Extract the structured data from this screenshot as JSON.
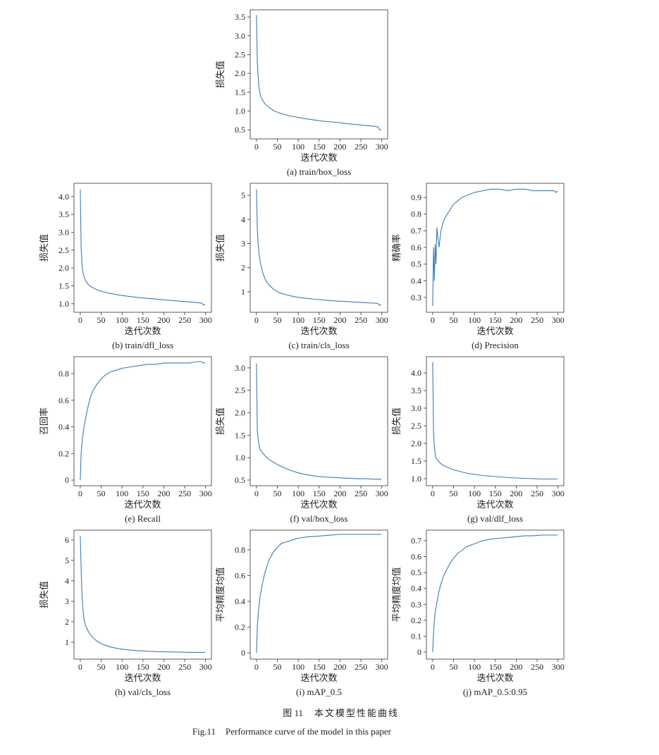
{
  "figure": {
    "label_cn": "图 11",
    "title_cn": "本文模型性能曲线",
    "label_en": "Fig.11",
    "title_en": "Performance curve of the model in this paper"
  },
  "chart_data": [
    {
      "type": "line",
      "caption": "(a) train/box_loss",
      "xlabel": "迭代次数",
      "ylabel": "损失值",
      "color": "#3f7ab3",
      "x": [
        0,
        2,
        4,
        6,
        8,
        10,
        15,
        20,
        25,
        30,
        40,
        50,
        60,
        70,
        80,
        90,
        100,
        120,
        140,
        160,
        180,
        200,
        220,
        240,
        260,
        280,
        290,
        295,
        299
      ],
      "values": [
        3.55,
        2.3,
        1.9,
        1.65,
        1.5,
        1.4,
        1.28,
        1.2,
        1.14,
        1.1,
        1.02,
        0.97,
        0.93,
        0.9,
        0.87,
        0.85,
        0.83,
        0.79,
        0.76,
        0.73,
        0.71,
        0.69,
        0.66,
        0.64,
        0.62,
        0.6,
        0.58,
        0.5,
        0.5
      ],
      "xlim": [
        -15,
        314
      ],
      "ylim": [
        0.26,
        3.69
      ],
      "xticks": [
        0,
        50,
        100,
        150,
        200,
        250,
        300
      ],
      "yticks": [
        0.5,
        {
          "value": 1,
          "label": "1.0"
        },
        1.5,
        {
          "value": 2,
          "label": "2.0"
        },
        2.5,
        {
          "value": 3,
          "label": "3.0"
        },
        3.5
      ]
    },
    {
      "type": "line",
      "caption": "(b) train/dfl_loss",
      "xlabel": "迭代次数",
      "ylabel": "损失值",
      "color": "#3f7ab3",
      "x": [
        0,
        2,
        4,
        6,
        8,
        10,
        15,
        20,
        25,
        30,
        40,
        50,
        60,
        70,
        80,
        90,
        100,
        120,
        140,
        160,
        180,
        200,
        220,
        240,
        260,
        280,
        290,
        295,
        299
      ],
      "values": [
        4.2,
        2.6,
        2.1,
        1.9,
        1.8,
        1.72,
        1.6,
        1.53,
        1.48,
        1.45,
        1.39,
        1.35,
        1.32,
        1.29,
        1.27,
        1.25,
        1.23,
        1.2,
        1.17,
        1.15,
        1.13,
        1.11,
        1.09,
        1.07,
        1.05,
        1.03,
        1.02,
        0.97,
        0.97
      ],
      "xlim": [
        -15,
        314
      ],
      "ylim": [
        0.76,
        4.37
      ],
      "xticks": [
        0,
        50,
        100,
        150,
        200,
        250,
        300
      ],
      "yticks": [
        {
          "value": 1,
          "label": "1.0"
        },
        1.5,
        {
          "value": 2,
          "label": "2.0"
        },
        2.5,
        {
          "value": 3,
          "label": "3.0"
        },
        3.5,
        {
          "value": 4,
          "label": "4.0"
        }
      ]
    },
    {
      "type": "line",
      "caption": "(c) train/cls_loss",
      "xlabel": "迭代次数",
      "ylabel": "损失值",
      "color": "#3f7ab3",
      "x": [
        0,
        2,
        4,
        6,
        8,
        10,
        15,
        20,
        25,
        30,
        40,
        50,
        60,
        70,
        80,
        90,
        100,
        120,
        140,
        160,
        180,
        200,
        220,
        240,
        260,
        280,
        290,
        295,
        299
      ],
      "values": [
        5.25,
        3.6,
        3.0,
        2.6,
        2.35,
        2.15,
        1.8,
        1.55,
        1.4,
        1.28,
        1.12,
        1.0,
        0.93,
        0.88,
        0.84,
        0.8,
        0.77,
        0.73,
        0.69,
        0.66,
        0.63,
        0.61,
        0.59,
        0.57,
        0.55,
        0.53,
        0.52,
        0.45,
        0.45
      ],
      "xlim": [
        -15,
        314
      ],
      "ylim": [
        0.15,
        5.5
      ],
      "xticks": [
        0,
        50,
        100,
        150,
        200,
        250,
        300
      ],
      "yticks": [
        1,
        2,
        3,
        4,
        5
      ]
    },
    {
      "type": "line",
      "caption": "(d) Precision",
      "xlabel": "迭代次数",
      "ylabel": "精确率",
      "color": "#3f7ab3",
      "x": [
        0,
        2,
        4,
        6,
        8,
        10,
        15,
        20,
        25,
        30,
        40,
        50,
        60,
        70,
        80,
        90,
        100,
        120,
        140,
        160,
        180,
        200,
        220,
        240,
        260,
        280,
        290,
        295,
        299
      ],
      "values": [
        0.25,
        0.6,
        0.4,
        0.62,
        0.5,
        0.72,
        0.6,
        0.7,
        0.75,
        0.78,
        0.82,
        0.86,
        0.88,
        0.9,
        0.91,
        0.92,
        0.93,
        0.94,
        0.95,
        0.95,
        0.94,
        0.95,
        0.95,
        0.94,
        0.94,
        0.94,
        0.94,
        0.93,
        0.94
      ],
      "xlim": [
        -15,
        314
      ],
      "ylim": [
        0.211,
        0.985
      ],
      "xticks": [
        0,
        50,
        100,
        150,
        200,
        250,
        300
      ],
      "yticks": [
        0.3,
        0.4,
        0.5,
        0.6,
        0.7,
        0.8,
        0.9
      ]
    },
    {
      "type": "line",
      "caption": "(e) Recall",
      "xlabel": "迭代次数",
      "ylabel": "召回率",
      "color": "#3f7ab3",
      "x": [
        0,
        2,
        4,
        6,
        8,
        10,
        15,
        20,
        25,
        30,
        40,
        50,
        60,
        70,
        80,
        90,
        100,
        120,
        140,
        160,
        180,
        200,
        220,
        240,
        260,
        280,
        290,
        295,
        299
      ],
      "values": [
        0,
        0.2,
        0.27,
        0.33,
        0.38,
        0.42,
        0.5,
        0.57,
        0.63,
        0.67,
        0.72,
        0.76,
        0.79,
        0.81,
        0.82,
        0.83,
        0.84,
        0.85,
        0.86,
        0.87,
        0.87,
        0.88,
        0.88,
        0.88,
        0.88,
        0.89,
        0.89,
        0.88,
        0.88
      ],
      "xlim": [
        -15,
        314
      ],
      "ylim": [
        -0.042,
        0.927
      ],
      "xticks": [
        0,
        50,
        100,
        150,
        200,
        250,
        300
      ],
      "yticks": [
        0,
        0.2,
        0.4,
        0.6,
        0.8
      ]
    },
    {
      "type": "line",
      "caption": "(f) val/box_loss",
      "xlabel": "迭代次数",
      "ylabel": "损失值",
      "color": "#3f7ab3",
      "x": [
        0,
        2,
        4,
        6,
        8,
        10,
        15,
        20,
        25,
        30,
        40,
        50,
        60,
        70,
        80,
        90,
        100,
        120,
        140,
        160,
        180,
        200,
        220,
        240,
        260,
        280,
        290,
        295,
        299
      ],
      "values": [
        3.1,
        1.6,
        1.4,
        1.3,
        1.2,
        1.17,
        1.1,
        1.05,
        1.0,
        0.96,
        0.9,
        0.85,
        0.8,
        0.76,
        0.72,
        0.69,
        0.66,
        0.62,
        0.59,
        0.57,
        0.56,
        0.55,
        0.54,
        0.53,
        0.53,
        0.52,
        0.52,
        0.52,
        0.52
      ],
      "xlim": [
        -15,
        314
      ],
      "ylim": [
        0.374,
        3.25
      ],
      "xticks": [
        0,
        50,
        100,
        150,
        200,
        250,
        300
      ],
      "yticks": [
        0.5,
        {
          "value": 1,
          "label": "1.0"
        },
        1.5,
        {
          "value": 2,
          "label": "2.0"
        },
        2.5,
        {
          "value": 3,
          "label": "3.0"
        }
      ]
    },
    {
      "type": "line",
      "caption": "(g) val/dlf_loss",
      "xlabel": "迭代次数",
      "ylabel": "损失值",
      "color": "#3f7ab3",
      "x": [
        0,
        2,
        4,
        6,
        8,
        10,
        15,
        20,
        25,
        30,
        40,
        50,
        60,
        70,
        80,
        90,
        100,
        120,
        140,
        160,
        180,
        200,
        220,
        240,
        260,
        280,
        290,
        295,
        299
      ],
      "values": [
        4.3,
        2.3,
        1.9,
        1.7,
        1.6,
        1.55,
        1.48,
        1.42,
        1.38,
        1.35,
        1.3,
        1.25,
        1.22,
        1.19,
        1.16,
        1.14,
        1.12,
        1.09,
        1.07,
        1.05,
        1.03,
        1.02,
        1.01,
        1.0,
        0.99,
        0.99,
        0.99,
        0.99,
        0.99
      ],
      "xlim": [
        -15,
        314
      ],
      "ylim": [
        0.8,
        4.46
      ],
      "xticks": [
        0,
        50,
        100,
        150,
        200,
        250,
        300
      ],
      "yticks": [
        {
          "value": 1,
          "label": "1.0"
        },
        1.5,
        {
          "value": 2,
          "label": "2.0"
        },
        2.5,
        {
          "value": 3,
          "label": "3.0"
        },
        3.5,
        {
          "value": 4,
          "label": "4.0"
        }
      ]
    },
    {
      "type": "line",
      "caption": "(h) val/cls_loss",
      "xlabel": "迭代次数",
      "ylabel": "损失值",
      "color": "#3f7ab3",
      "x": [
        0,
        2,
        4,
        6,
        8,
        10,
        15,
        20,
        25,
        30,
        40,
        50,
        60,
        70,
        80,
        90,
        100,
        120,
        140,
        160,
        180,
        200,
        220,
        240,
        260,
        280,
        290,
        295,
        299
      ],
      "values": [
        6.2,
        4.6,
        3.3,
        2.7,
        2.3,
        2.0,
        1.7,
        1.5,
        1.35,
        1.22,
        1.05,
        0.93,
        0.85,
        0.78,
        0.73,
        0.69,
        0.66,
        0.61,
        0.58,
        0.56,
        0.54,
        0.53,
        0.52,
        0.51,
        0.5,
        0.5,
        0.5,
        0.5,
        0.5
      ],
      "xlim": [
        -15,
        314
      ],
      "ylim": [
        0.17,
        6.48
      ],
      "xticks": [
        0,
        50,
        100,
        150,
        200,
        250,
        300
      ],
      "yticks": [
        1,
        2,
        3,
        4,
        5,
        6
      ]
    },
    {
      "type": "line",
      "caption": "(i) mAP_0.5",
      "xlabel": "迭代次数",
      "ylabel": "平均精度均值",
      "color": "#3f7ab3",
      "x": [
        0,
        2,
        4,
        6,
        8,
        10,
        15,
        20,
        25,
        30,
        40,
        50,
        60,
        70,
        80,
        90,
        100,
        120,
        140,
        160,
        180,
        200,
        220,
        240,
        260,
        280,
        290,
        295,
        299
      ],
      "values": [
        0,
        0.2,
        0.3,
        0.36,
        0.42,
        0.46,
        0.55,
        0.62,
        0.67,
        0.72,
        0.78,
        0.82,
        0.85,
        0.86,
        0.87,
        0.88,
        0.89,
        0.9,
        0.905,
        0.91,
        0.915,
        0.92,
        0.92,
        0.92,
        0.92,
        0.92,
        0.92,
        0.92,
        0.92
      ],
      "xlim": [
        -15,
        314
      ],
      "ylim": [
        -0.049,
        0.953
      ],
      "xticks": [
        0,
        50,
        100,
        150,
        200,
        250,
        300
      ],
      "yticks": [
        0,
        0.2,
        0.4,
        0.6,
        0.8
      ]
    },
    {
      "type": "line",
      "caption": "(j) mAP_0.5:0.95",
      "xlabel": "迭代次数",
      "ylabel": "平均精度均值",
      "color": "#3f7ab3",
      "x": [
        0,
        2,
        4,
        6,
        8,
        10,
        15,
        20,
        25,
        30,
        40,
        50,
        60,
        70,
        80,
        90,
        100,
        120,
        140,
        160,
        180,
        200,
        220,
        240,
        260,
        280,
        290,
        295,
        299
      ],
      "values": [
        0,
        0.12,
        0.2,
        0.25,
        0.28,
        0.31,
        0.38,
        0.43,
        0.47,
        0.5,
        0.55,
        0.59,
        0.62,
        0.64,
        0.66,
        0.67,
        0.68,
        0.7,
        0.71,
        0.715,
        0.72,
        0.725,
        0.73,
        0.73,
        0.735,
        0.735,
        0.735,
        0.735,
        0.735
      ],
      "xlim": [
        -15,
        314
      ],
      "ylim": [
        -0.044,
        0.766
      ],
      "xticks": [
        0,
        50,
        100,
        150,
        200,
        250,
        300
      ],
      "yticks": [
        0,
        0.1,
        0.2,
        0.3,
        0.4,
        0.5,
        0.6,
        0.7
      ]
    }
  ]
}
